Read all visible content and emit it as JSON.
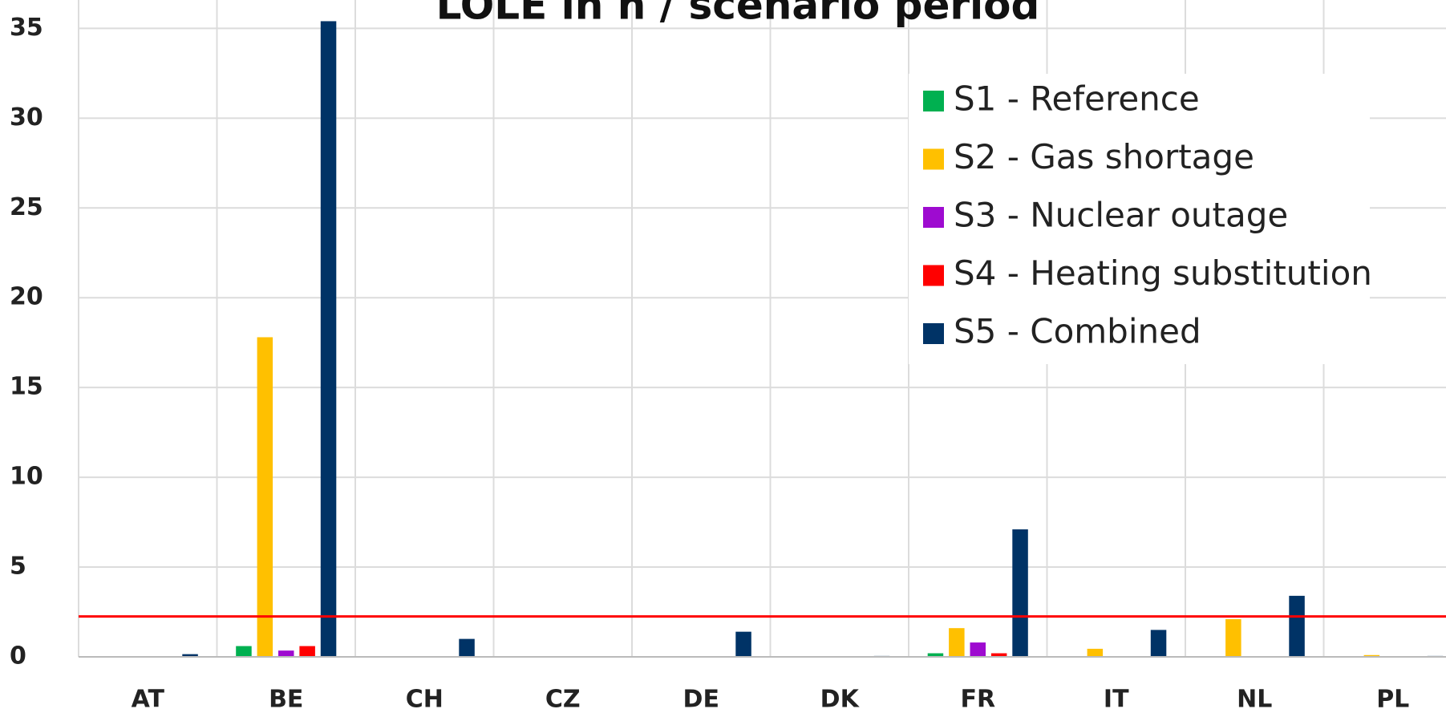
{
  "chart_data": {
    "type": "bar",
    "title": "LOLE in h / scenario period",
    "categories": [
      "AT",
      "BE",
      "CH",
      "CZ",
      "DE",
      "DK",
      "FR",
      "IT",
      "NL",
      "PL"
    ],
    "series": [
      {
        "name": "S1 - Reference",
        "color": "#00b050",
        "values": [
          0,
          0.6,
          0,
          0,
          0,
          0,
          0.2,
          0,
          0,
          0
        ]
      },
      {
        "name": "S2 - Gas shortage",
        "color": "#ffc000",
        "values": [
          0,
          17.8,
          0,
          0,
          0,
          0,
          1.6,
          0.45,
          2.1,
          0.1
        ]
      },
      {
        "name": "S3 - Nuclear outage",
        "color": "#9e0bd0",
        "values": [
          0,
          0.35,
          0,
          0,
          0,
          0,
          0.8,
          0,
          0,
          0
        ]
      },
      {
        "name": "S4 - Heating substitution",
        "color": "#ff0000",
        "values": [
          0,
          0.6,
          0,
          0,
          0,
          0,
          0.2,
          0,
          0,
          0
        ]
      },
      {
        "name": "S5 - Combined",
        "color": "#003366",
        "values": [
          0.15,
          35.4,
          1.0,
          0,
          1.4,
          0.05,
          7.1,
          1.5,
          3.4,
          0.05
        ]
      }
    ],
    "threshold": 2.25,
    "threshold_color": "#ff0000",
    "ylim": [
      0,
      36
    ],
    "yticks": [
      0,
      5,
      10,
      15,
      20,
      25,
      30,
      35
    ],
    "grid": true,
    "legend": "upper right"
  }
}
